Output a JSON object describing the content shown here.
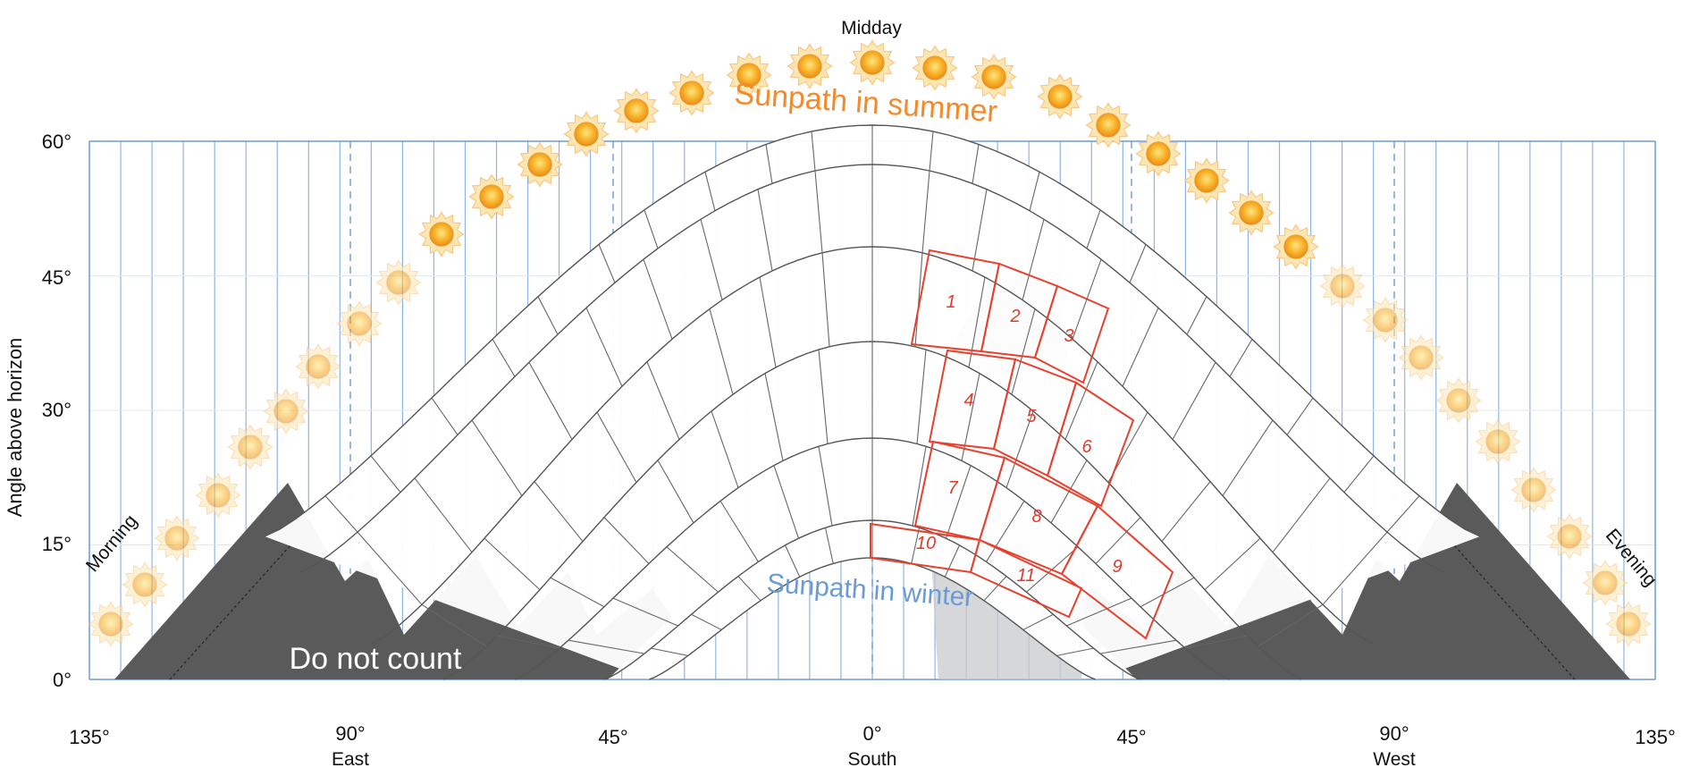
{
  "diagram": {
    "midday_label": "Midday",
    "summer_label": "Sunpath in summer",
    "winter_label": "Sunpath in winter",
    "do_not_count_label": "Do not count",
    "morning_label": "Morning",
    "evening_label": "Evening",
    "y_axis_label": "Angle above horizon",
    "y_ticks": [
      "0°",
      "15°",
      "30°",
      "45°",
      "60°"
    ],
    "x_ticks": [
      {
        "angle": "135°",
        "direction": ""
      },
      {
        "angle": "90°",
        "direction": "East"
      },
      {
        "angle": "45°",
        "direction": ""
      },
      {
        "angle": "0°",
        "direction": "South"
      },
      {
        "angle": "45°",
        "direction": ""
      },
      {
        "angle": "90°",
        "direction": "West"
      },
      {
        "angle": "135°",
        "direction": ""
      }
    ],
    "counted_cells": [
      "1",
      "2",
      "3",
      "4",
      "5",
      "6",
      "7",
      "8",
      "9",
      "10",
      "11"
    ],
    "colors": {
      "grid_line": "#8fb4e3",
      "axis_line": "#6a9bd8",
      "sun": "#f5a623",
      "summer_text": "#f28a2e",
      "winter_text": "#6a9bd8",
      "obstruction": "#5a5a5a",
      "shade": "#c8c9cb",
      "highlight": "#e8402e"
    }
  }
}
